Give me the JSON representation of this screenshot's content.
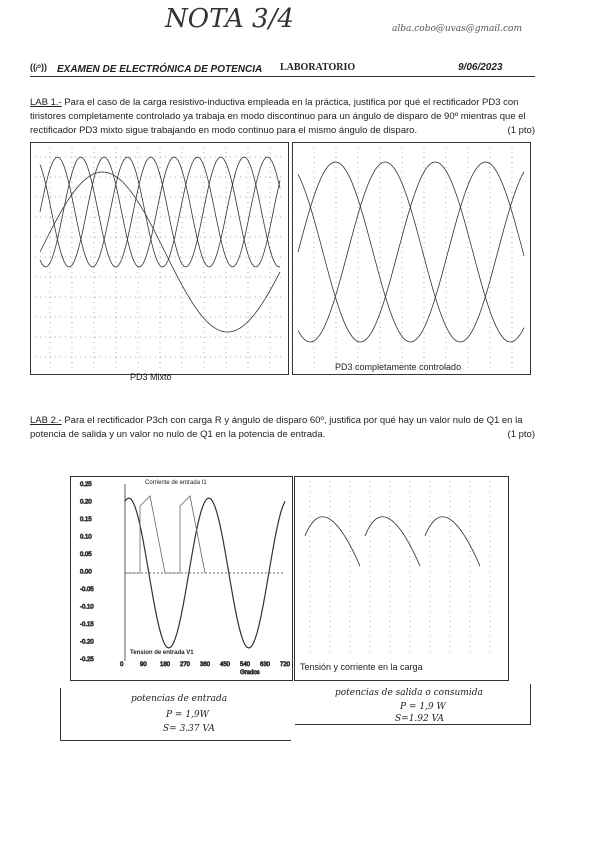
{
  "handwritten": {
    "grade": "NOTA 3/4",
    "email": "alba.cobo@uvas@gmail.com"
  },
  "header": {
    "exam": "EXAMEN DE ELECTRÓNICA DE POTENCIA",
    "section": "LABORATORIO",
    "date": "9/06/2023"
  },
  "questions": [
    {
      "label": "LAB 1.-",
      "text": "Para el caso de la carga resistivo-inductiva empleada en la práctica, justifica por qué el rectificador PD3 con tiristores completamente controlado ya trabaja en modo discontinuo para un ángulo de disparo de 90º mientras que el rectificador PD3 mixto sigue trabajando en modo continuo para el mismo ángulo de disparo.",
      "points": "(1 pto)",
      "figures": [
        "PD3 Mixto",
        "PD3 completamente controlado"
      ]
    },
    {
      "label": "LAB 2.-",
      "text": "Para el rectificador P3ch con carga R y ángulo de disparo 60º, justifica por qué hay un valor nulo de Q1 en la potencia de salida y un valor no nulo de Q1 en la potencia de entrada.",
      "points": "(1 pto)",
      "figures": [
        "Tensión y corriente de entrada",
        "Tensión y corriente en la carga"
      ],
      "plot": {
        "current_label": "Corriente de entrada I1",
        "voltage_label": "Tension de entrada V1",
        "yticks": [
          "0.25",
          "0.20",
          "0.15",
          "0.10",
          "0.05",
          "0.00",
          "-0.05",
          "-0.10",
          "-0.15",
          "-0.20",
          "-0.25"
        ],
        "xticks": [
          "0",
          "90",
          "180",
          "270",
          "360",
          "450",
          "540",
          "630",
          "720"
        ],
        "xlabel": "Grados"
      }
    }
  ],
  "answers": [
    {
      "heading": "potencias de entrada",
      "p": "P = 1,9W",
      "s": "S= 3.37 VA"
    },
    {
      "heading": "potencias de salida o consumida",
      "p": "P = 1,9 W",
      "s": "S=1.92 VA"
    }
  ]
}
